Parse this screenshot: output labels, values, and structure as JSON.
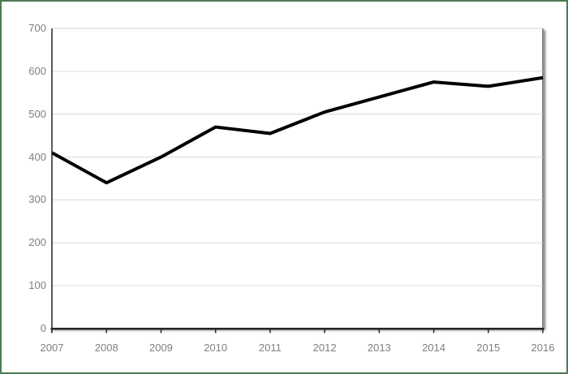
{
  "window": {
    "title": "",
    "background": "#ffffff"
  },
  "chart_data": {
    "type": "line",
    "title": "",
    "subtitle": "",
    "xlabel": "",
    "ylabel": "",
    "categories": [
      "2007",
      "2008",
      "2009",
      "2010",
      "2011",
      "2012",
      "2013",
      "2014",
      "2015",
      "2016"
    ],
    "series": [
      {
        "name": "",
        "values": [
          410,
          340,
          400,
          470,
          455,
          505,
          540,
          575,
          565,
          585
        ],
        "color": "#000000",
        "stroke_width": 4
      }
    ],
    "ylim": [
      0,
      700
    ],
    "yticks": [
      0,
      100,
      200,
      300,
      400,
      500,
      600,
      700
    ],
    "grid": "horizontal",
    "legend": "none"
  },
  "style": {
    "frame_border_color": "#4e7b55",
    "axis_color": "#262626",
    "gridline_color": "#d9d9d9",
    "tick_label_color": "#7f7f7f",
    "plot_border_color": "#8c8c8c",
    "background": "#ffffff"
  }
}
